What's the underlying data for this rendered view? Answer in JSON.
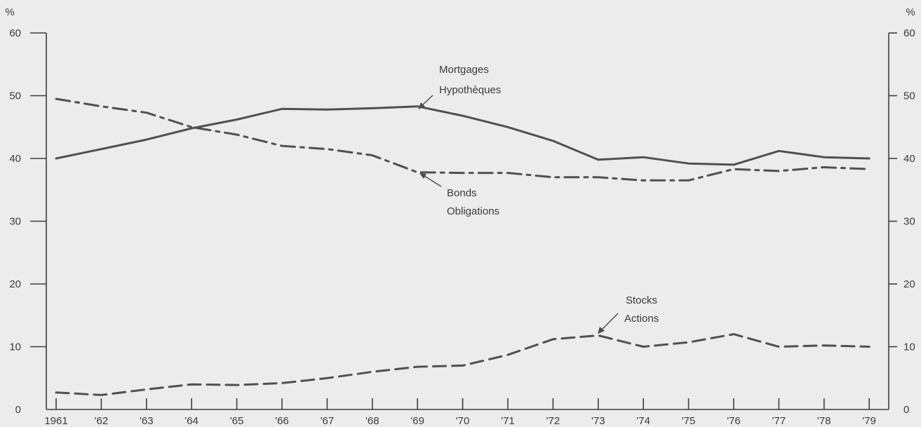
{
  "chart_data": {
    "type": "line",
    "unit_left": "%",
    "unit_right": "%",
    "ylim": [
      0,
      60
    ],
    "yticks": [
      0,
      10,
      20,
      30,
      40,
      50,
      60
    ],
    "categories": [
      "1961",
      "'62",
      "'63",
      "'64",
      "'65",
      "'66",
      "'67",
      "'68",
      "'69",
      "'70",
      "'71",
      "'72",
      "'73",
      "'74",
      "'75",
      "'76",
      "'77",
      "'78",
      "'79"
    ],
    "grid": false,
    "series": [
      {
        "key": "mortgages",
        "name_en": "Mortgages",
        "name_fr": "Hypothèques",
        "style": "solid",
        "values": [
          40.0,
          41.5,
          43.0,
          44.8,
          46.2,
          47.9,
          47.8,
          48.0,
          48.3,
          46.8,
          45.0,
          42.8,
          39.8,
          40.2,
          39.2,
          39.0,
          41.2,
          40.2,
          40.0
        ]
      },
      {
        "key": "bonds",
        "name_en": "Bonds",
        "name_fr": "Obligations",
        "style": "dashdot",
        "values": [
          49.5,
          48.3,
          47.3,
          45.0,
          43.8,
          42.0,
          41.5,
          40.5,
          37.8,
          37.7,
          37.7,
          37.0,
          37.0,
          36.5,
          36.5,
          38.3,
          38.0,
          38.6,
          38.3
        ]
      },
      {
        "key": "stocks",
        "name_en": "Stocks",
        "name_fr": "Actions",
        "style": "dashed",
        "values": [
          2.7,
          2.3,
          3.2,
          4.0,
          3.9,
          4.2,
          5.0,
          6.0,
          6.8,
          7.0,
          8.7,
          11.2,
          11.8,
          10.0,
          10.7,
          12.0,
          10.0,
          10.2,
          10.0
        ]
      }
    ]
  }
}
